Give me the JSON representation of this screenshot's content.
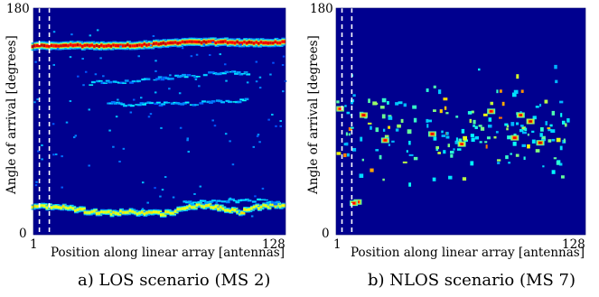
{
  "chart_data": [
    {
      "type": "heatmap",
      "caption": "a) LOS scenario (MS 2)",
      "xlabel": "Position along linear array [antennas]",
      "ylabel": "Angle of arrival [degrees]",
      "xlim": [
        1,
        128
      ],
      "ylim": [
        0,
        180
      ],
      "x_ticks": [
        "1",
        "128"
      ],
      "y_ticks": [
        "0",
        "180"
      ],
      "colormap": "jet",
      "background_color": "#00008f",
      "dashed_markers_x": [
        4,
        9
      ],
      "dashed_color": "#ffffff",
      "paths": [
        {
          "strength": "strong",
          "points": [
            [
              1,
              150
            ],
            [
              10,
              150
            ],
            [
              20,
              150.5
            ],
            [
              30,
              150
            ],
            [
              40,
              150
            ],
            [
              50,
              150.5
            ],
            [
              60,
              151
            ],
            [
              70,
              152
            ],
            [
              80,
              153
            ],
            [
              90,
              153
            ],
            [
              100,
              153
            ],
            [
              110,
              152.5
            ],
            [
              120,
              152.5
            ],
            [
              128,
              153
            ]
          ]
        },
        {
          "strength": "medium",
          "points": [
            [
              1,
              22
            ],
            [
              10,
              22
            ],
            [
              20,
              21
            ],
            [
              30,
              18
            ],
            [
              40,
              17
            ],
            [
              50,
              18
            ],
            [
              60,
              17
            ],
            [
              70,
              17
            ],
            [
              75,
              20
            ],
            [
              80,
              23
            ],
            [
              90,
              23
            ],
            [
              100,
              20
            ],
            [
              105,
              18
            ],
            [
              110,
              20
            ],
            [
              115,
              22
            ],
            [
              120,
              23
            ],
            [
              128,
              23
            ]
          ]
        },
        {
          "strength": "weak",
          "points": [
            [
              75,
              25
            ],
            [
              85,
              26
            ],
            [
              95,
              27
            ],
            [
              105,
              27
            ],
            [
              115,
              27
            ],
            [
              125,
              25
            ]
          ]
        },
        {
          "strength": "weak",
          "points": [
            [
              40,
              105
            ],
            [
              50,
              103
            ],
            [
              60,
              104
            ],
            [
              70,
              104
            ],
            [
              80,
              104
            ],
            [
              90,
              105
            ],
            [
              100,
              106
            ],
            [
              110,
              107
            ]
          ]
        },
        {
          "strength": "weak",
          "points": [
            [
              30,
              120
            ],
            [
              40,
              122
            ],
            [
              50,
              121
            ],
            [
              60,
              123
            ],
            [
              70,
              125
            ],
            [
              80,
              126
            ],
            [
              90,
              128
            ],
            [
              100,
              129
            ],
            [
              110,
              128
            ]
          ]
        }
      ]
    },
    {
      "type": "heatmap",
      "caption": "b) NLOS scenario (MS 7)",
      "xlabel": "Position along linear array [antennas]",
      "ylabel": "Angle of arrival [degrees]",
      "xlim": [
        1,
        128
      ],
      "ylim": [
        0,
        180
      ],
      "x_ticks": [
        "1",
        "128"
      ],
      "y_ticks": [
        "0",
        "180"
      ],
      "colormap": "jet",
      "background_color": "#00008f",
      "dashed_markers_x": [
        4,
        9
      ],
      "dashed_color": "#ffffff",
      "scatter_region": {
        "x_range": [
          1,
          120
        ],
        "angle_range": [
          25,
          145
        ],
        "centre_angle": 85,
        "blob_count": 190
      },
      "hot_spots": [
        [
          12,
          26
        ],
        [
          10,
          25
        ],
        [
          15,
          95
        ],
        [
          26,
          75
        ],
        [
          50,
          80
        ],
        [
          65,
          72
        ],
        [
          92,
          77
        ],
        [
          95,
          95
        ],
        [
          100,
          90
        ],
        [
          3,
          100
        ],
        [
          105,
          73
        ],
        [
          80,
          98
        ]
      ]
    }
  ]
}
